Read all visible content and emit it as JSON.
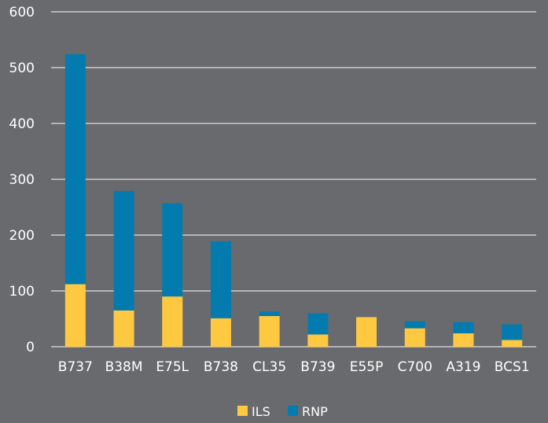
{
  "colors": {
    "background": "#696A6D",
    "gridline": "#FFFFFF",
    "text": "#FFFFFF",
    "ILS": "#FFC841",
    "RNP": "#047BAF"
  },
  "chart_data": {
    "type": "bar",
    "stacked": true,
    "title": "",
    "xlabel": "",
    "ylabel": "",
    "categories": [
      "B737",
      "B38M",
      "E75L",
      "B738",
      "CL35",
      "B739",
      "E55P",
      "C700",
      "A319",
      "BCS1"
    ],
    "series": [
      {
        "name": "ILS",
        "values": [
          112,
          65,
          90,
          51,
          55,
          22,
          53,
          33,
          24,
          12
        ]
      },
      {
        "name": "RNP",
        "values": [
          412,
          214,
          167,
          138,
          8,
          38,
          0,
          13,
          20,
          28
        ]
      }
    ],
    "ylim": [
      0,
      600
    ],
    "yticks": [
      0,
      100,
      200,
      300,
      400,
      500,
      600
    ],
    "grid": true,
    "legend": "bottom-center"
  }
}
